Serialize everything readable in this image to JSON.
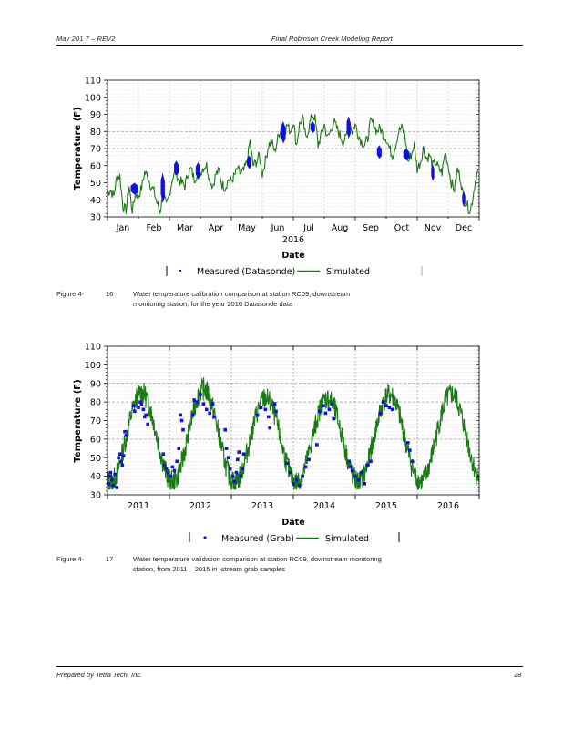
{
  "header": {
    "left": "May   201   7  –  REV2",
    "right": "Final Robinson Creek Modeling Report"
  },
  "footer": {
    "left": "Prepared by Tetra Tech, Inc.",
    "page": "28"
  },
  "captions": [
    {
      "label": "Figure 4-",
      "number": "16",
      "line1": "Water         temperature              calibration             comparison            at      station        RC09,         downstream",
      "line2": "monitoring station, for the year 2016 Datasonde data"
    },
    {
      "label": "Figure 4-",
      "number": "17",
      "line1": "Water temperature validation comparison at station RC09, downstream monitoring",
      "line2": "station, from 2011 – 2015                     in -stream grab samples"
    }
  ],
  "colors": {
    "simulated": "#1a7a12",
    "measured": "#1010e0",
    "grid_major": "#9a9a9a",
    "grid_minor": "#d8d8d8"
  },
  "chart_data": [
    {
      "type": "line",
      "title": "",
      "xlabel": "Date",
      "xsublabel": "2016",
      "ylabel": "Temperature (F)",
      "ylim": [
        30,
        110
      ],
      "yticks": [
        30,
        40,
        50,
        60,
        70,
        80,
        90,
        100,
        110
      ],
      "y_major_grid": [
        70,
        80
      ],
      "xlim_months": [
        0,
        12
      ],
      "xtick_labels": [
        "Jan",
        "Feb",
        "Mar",
        "Apr",
        "May",
        "Jun",
        "Jul",
        "Aug",
        "Sep",
        "Oct",
        "Nov",
        "Dec"
      ],
      "grid": true,
      "legend": {
        "placement": "bottom",
        "entries": [
          {
            "label": "Measured (Datasonde)",
            "style": "marker"
          },
          {
            "label": "Simulated",
            "style": "line"
          }
        ]
      },
      "series": [
        {
          "name": "Simulated",
          "x_month": [
            0.0,
            0.1,
            0.2,
            0.3,
            0.4,
            0.5,
            0.6,
            0.7,
            0.8,
            0.9,
            1.0,
            1.1,
            1.2,
            1.3,
            1.4,
            1.5,
            1.6,
            1.7,
            1.8,
            1.9,
            2.0,
            2.1,
            2.2,
            2.3,
            2.4,
            2.5,
            2.6,
            2.7,
            2.8,
            2.9,
            3.0,
            3.1,
            3.2,
            3.3,
            3.4,
            3.5,
            3.6,
            3.7,
            3.8,
            3.9,
            4.0,
            4.1,
            4.2,
            4.3,
            4.4,
            4.5,
            4.6,
            4.7,
            4.8,
            4.9,
            5.0,
            5.1,
            5.2,
            5.3,
            5.4,
            5.5,
            5.6,
            5.7,
            5.8,
            5.9,
            6.0,
            6.1,
            6.2,
            6.3,
            6.4,
            6.5,
            6.6,
            6.7,
            6.8,
            6.9,
            7.0,
            7.1,
            7.2,
            7.3,
            7.4,
            7.5,
            7.6,
            7.7,
            7.8,
            7.9,
            8.0,
            8.1,
            8.2,
            8.3,
            8.4,
            8.5,
            8.6,
            8.7,
            8.8,
            8.9,
            9.0,
            9.1,
            9.2,
            9.3,
            9.4,
            9.5,
            9.6,
            9.7,
            9.8,
            9.9,
            10.0,
            10.1,
            10.2,
            10.3,
            10.4,
            10.5,
            10.6,
            10.7,
            10.8,
            10.9,
            11.0,
            11.1,
            11.2,
            11.3,
            11.4,
            11.5,
            11.6,
            11.7,
            11.8,
            11.9,
            12.0
          ],
          "y": [
            44,
            46,
            42,
            53,
            54,
            36,
            34,
            48,
            33,
            44,
            42,
            47,
            56,
            54,
            48,
            45,
            38,
            33,
            44,
            36,
            43,
            53,
            56,
            52,
            50,
            48,
            56,
            58,
            52,
            55,
            56,
            59,
            60,
            52,
            48,
            55,
            57,
            49,
            47,
            52,
            51,
            54,
            58,
            55,
            57,
            62,
            74,
            60,
            62,
            66,
            55,
            63,
            72,
            74,
            68,
            76,
            82,
            78,
            84,
            80,
            86,
            72,
            84,
            88,
            76,
            82,
            90,
            88,
            72,
            78,
            84,
            76,
            80,
            86,
            82,
            78,
            74,
            76,
            86,
            80,
            84,
            78,
            74,
            72,
            76,
            86,
            84,
            80,
            82,
            78,
            76,
            70,
            66,
            72,
            80,
            82,
            78,
            62,
            66,
            72,
            58,
            62,
            70,
            64,
            66,
            60,
            62,
            58,
            56,
            68,
            60,
            50,
            46,
            58,
            52,
            40,
            38,
            32,
            42,
            54,
            58
          ]
        },
        {
          "name": "Measured (Datasonde)",
          "segments": [
            {
              "x_month": [
                0.75,
                1.0
              ],
              "y_range": [
                43,
                50
              ]
            },
            {
              "x_month": [
                1.72,
                1.85
              ],
              "y_range": [
                38,
                56
              ]
            },
            {
              "x_month": [
                2.15,
                2.3
              ],
              "y_range": [
                54,
                63
              ]
            },
            {
              "x_month": [
                2.85,
                3.0
              ],
              "y_range": [
                52,
                62
              ]
            },
            {
              "x_month": [
                4.5,
                4.65
              ],
              "y_range": [
                58,
                66
              ]
            },
            {
              "x_month": [
                5.6,
                5.75
              ],
              "y_range": [
                73,
                86
              ]
            },
            {
              "x_month": [
                6.55,
                6.7
              ],
              "y_range": [
                79,
                86
              ]
            },
            {
              "x_month": [
                7.72,
                7.85
              ],
              "y_range": [
                76,
                89
              ]
            },
            {
              "x_month": [
                8.7,
                8.85
              ],
              "y_range": [
                64,
                72
              ]
            },
            {
              "x_month": [
                9.55,
                9.75
              ],
              "y_range": [
                63,
                70
              ]
            },
            {
              "x_month": [
                10.45,
                10.55
              ],
              "y_range": [
                51,
                61
              ]
            },
            {
              "x_month": [
                11.45,
                11.55
              ],
              "y_range": [
                36,
                45
              ]
            }
          ],
          "points": [
            {
              "x_month": 10.2,
              "y": 70
            }
          ]
        }
      ]
    },
    {
      "type": "line",
      "title": "",
      "xlabel": "Date",
      "ylabel": "Temperature (F)",
      "ylim": [
        30,
        110
      ],
      "yticks": [
        30,
        40,
        50,
        60,
        70,
        80,
        90,
        100,
        110
      ],
      "y_major_grid": [
        60,
        80,
        90
      ],
      "xlim_years": [
        2011.0,
        2017.0
      ],
      "xtick_labels": [
        "2011",
        "2012",
        "2013",
        "2014",
        "2015",
        "2016"
      ],
      "grid": true,
      "legend": {
        "placement": "bottom",
        "entries": [
          {
            "label": "Measured (Grab)",
            "style": "marker"
          },
          {
            "label": "Simulated",
            "style": "line"
          }
        ]
      },
      "series": [
        {
          "name": "Simulated",
          "annual_cycle": {
            "mean": 58,
            "amplitude": 22,
            "peak_fraction": 0.55,
            "noise_band": 12
          },
          "yearly_peaks": [
            {
              "year": 2011,
              "max": 91,
              "min": 33
            },
            {
              "year": 2012,
              "max": 93,
              "min": 33
            },
            {
              "year": 2013,
              "max": 88,
              "min": 33
            },
            {
              "year": 2014,
              "max": 88,
              "min": 33
            },
            {
              "year": 2015,
              "max": 90,
              "min": 33
            },
            {
              "year": 2016,
              "max": 90,
              "min": 33
            }
          ]
        },
        {
          "name": "Measured (Grab)",
          "points": [
            {
              "x": 2011.02,
              "y": 36
            },
            {
              "x": 2011.04,
              "y": 40
            },
            {
              "x": 2011.05,
              "y": 42
            },
            {
              "x": 2011.07,
              "y": 38
            },
            {
              "x": 2011.09,
              "y": 35
            },
            {
              "x": 2011.12,
              "y": 41
            },
            {
              "x": 2011.15,
              "y": 34
            },
            {
              "x": 2011.18,
              "y": 50
            },
            {
              "x": 2011.2,
              "y": 52
            },
            {
              "x": 2011.22,
              "y": 48
            },
            {
              "x": 2011.24,
              "y": 46
            },
            {
              "x": 2011.26,
              "y": 51
            },
            {
              "x": 2011.28,
              "y": 64
            },
            {
              "x": 2011.3,
              "y": 62
            },
            {
              "x": 2011.42,
              "y": 78
            },
            {
              "x": 2011.44,
              "y": 75
            },
            {
              "x": 2011.5,
              "y": 77
            },
            {
              "x": 2011.53,
              "y": 80
            },
            {
              "x": 2011.55,
              "y": 79
            },
            {
              "x": 2011.58,
              "y": 76
            },
            {
              "x": 2011.6,
              "y": 72
            },
            {
              "x": 2011.62,
              "y": 73
            },
            {
              "x": 2011.65,
              "y": 68
            },
            {
              "x": 2011.9,
              "y": 52
            },
            {
              "x": 2011.92,
              "y": 46
            },
            {
              "x": 2011.95,
              "y": 44
            },
            {
              "x": 2011.98,
              "y": 42
            },
            {
              "x": 2012.02,
              "y": 40
            },
            {
              "x": 2012.05,
              "y": 45
            },
            {
              "x": 2012.08,
              "y": 43
            },
            {
              "x": 2012.12,
              "y": 48
            },
            {
              "x": 2012.15,
              "y": 55
            },
            {
              "x": 2012.18,
              "y": 73
            },
            {
              "x": 2012.2,
              "y": 70
            },
            {
              "x": 2012.22,
              "y": 65
            },
            {
              "x": 2012.38,
              "y": 73
            },
            {
              "x": 2012.4,
              "y": 81
            },
            {
              "x": 2012.45,
              "y": 80
            },
            {
              "x": 2012.5,
              "y": 84
            },
            {
              "x": 2012.55,
              "y": 79
            },
            {
              "x": 2012.6,
              "y": 76
            },
            {
              "x": 2012.65,
              "y": 74
            },
            {
              "x": 2012.7,
              "y": 79
            },
            {
              "x": 2012.72,
              "y": 72
            },
            {
              "x": 2012.9,
              "y": 65
            },
            {
              "x": 2012.92,
              "y": 55
            },
            {
              "x": 2012.95,
              "y": 50
            },
            {
              "x": 2012.98,
              "y": 44
            },
            {
              "x": 2013.02,
              "y": 40
            },
            {
              "x": 2013.05,
              "y": 37
            },
            {
              "x": 2013.08,
              "y": 42
            },
            {
              "x": 2013.1,
              "y": 49
            },
            {
              "x": 2013.12,
              "y": 53
            },
            {
              "x": 2013.15,
              "y": 40
            },
            {
              "x": 2013.18,
              "y": 44
            },
            {
              "x": 2013.2,
              "y": 52
            },
            {
              "x": 2013.42,
              "y": 73
            },
            {
              "x": 2013.48,
              "y": 77
            },
            {
              "x": 2013.55,
              "y": 76
            },
            {
              "x": 2013.6,
              "y": 72
            },
            {
              "x": 2013.62,
              "y": 66
            },
            {
              "x": 2013.7,
              "y": 79
            },
            {
              "x": 2013.72,
              "y": 75
            },
            {
              "x": 2013.9,
              "y": 47
            },
            {
              "x": 2013.95,
              "y": 42
            },
            {
              "x": 2014.0,
              "y": 36
            },
            {
              "x": 2014.05,
              "y": 38
            },
            {
              "x": 2014.1,
              "y": 35
            },
            {
              "x": 2014.15,
              "y": 40
            },
            {
              "x": 2014.2,
              "y": 45
            },
            {
              "x": 2014.25,
              "y": 49
            },
            {
              "x": 2014.38,
              "y": 57
            },
            {
              "x": 2014.42,
              "y": 75
            },
            {
              "x": 2014.48,
              "y": 78
            },
            {
              "x": 2014.52,
              "y": 74
            },
            {
              "x": 2014.58,
              "y": 76
            },
            {
              "x": 2014.62,
              "y": 79
            },
            {
              "x": 2014.65,
              "y": 71
            },
            {
              "x": 2014.9,
              "y": 48
            },
            {
              "x": 2014.92,
              "y": 45
            },
            {
              "x": 2014.95,
              "y": 43
            },
            {
              "x": 2015.0,
              "y": 40
            },
            {
              "x": 2015.05,
              "y": 38
            },
            {
              "x": 2015.1,
              "y": 42
            },
            {
              "x": 2015.15,
              "y": 36
            },
            {
              "x": 2015.2,
              "y": 46
            },
            {
              "x": 2015.25,
              "y": 48
            },
            {
              "x": 2015.4,
              "y": 74
            },
            {
              "x": 2015.45,
              "y": 80
            },
            {
              "x": 2015.5,
              "y": 78
            },
            {
              "x": 2015.55,
              "y": 77
            },
            {
              "x": 2015.6,
              "y": 76
            },
            {
              "x": 2015.85,
              "y": 58
            },
            {
              "x": 2015.88,
              "y": 54
            },
            {
              "x": 2015.92,
              "y": 48
            }
          ]
        }
      ]
    }
  ]
}
